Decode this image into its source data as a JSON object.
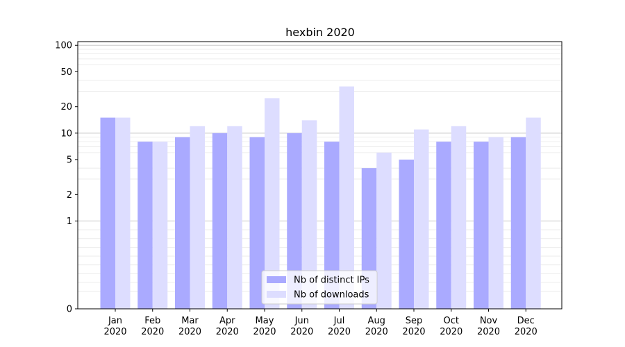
{
  "chart_data": {
    "type": "bar",
    "title": "hexbin 2020",
    "xlabel": "",
    "ylabel": "",
    "y_scale": "symlog",
    "ylim": [
      0,
      110
    ],
    "y_ticks": [
      0,
      1,
      2,
      5,
      10,
      20,
      50,
      100
    ],
    "grid": true,
    "legend_position": "bottom-center",
    "categories": [
      [
        "Jan",
        "2020"
      ],
      [
        "Feb",
        "2020"
      ],
      [
        "Mar",
        "2020"
      ],
      [
        "Apr",
        "2020"
      ],
      [
        "May",
        "2020"
      ],
      [
        "Jun",
        "2020"
      ],
      [
        "Jul",
        "2020"
      ],
      [
        "Aug",
        "2020"
      ],
      [
        "Sep",
        "2020"
      ],
      [
        "Oct",
        "2020"
      ],
      [
        "Nov",
        "2020"
      ],
      [
        "Dec",
        "2020"
      ]
    ],
    "series": [
      {
        "name": "Nb of distinct IPs",
        "color": "#aaaaff",
        "values": [
          15,
          8,
          9,
          10,
          9,
          10,
          8,
          4,
          5,
          8,
          8,
          9
        ]
      },
      {
        "name": "Nb of downloads",
        "color": "#ddddff",
        "values": [
          15,
          8,
          12,
          12,
          25,
          14,
          34,
          6,
          11,
          12,
          9,
          15
        ]
      }
    ]
  }
}
